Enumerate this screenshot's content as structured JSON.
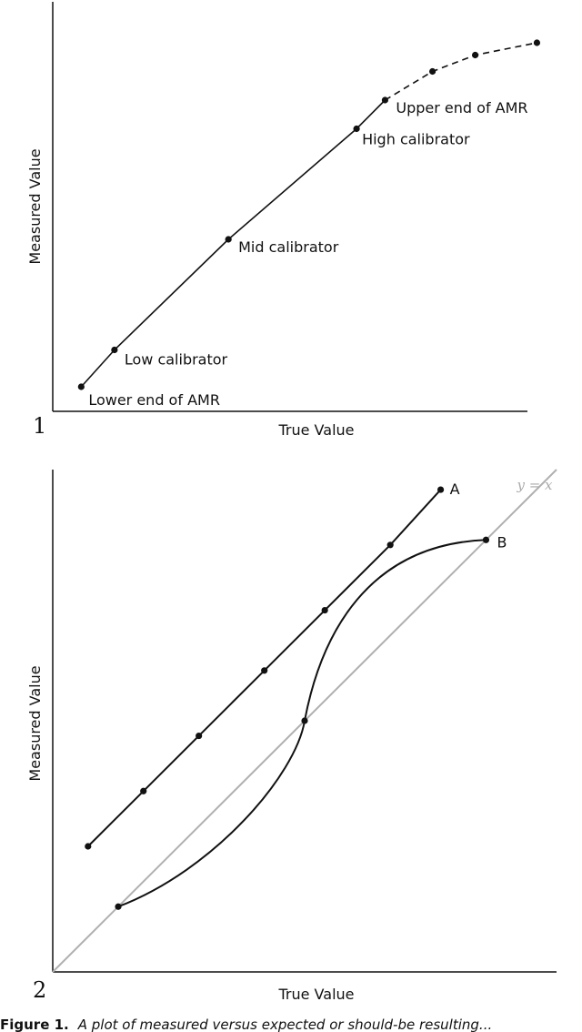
{
  "caption": {
    "label": "Figure 1.",
    "text": "A plot of measured versus expected or should-be resulting..."
  },
  "chart_data": [
    {
      "type": "line",
      "panel_number": "1",
      "xlabel": "True Value",
      "ylabel": "Measured Value",
      "xlim": [
        0,
        10
      ],
      "ylim": [
        0,
        10
      ],
      "grid": false,
      "series": [
        {
          "style": "solid",
          "x": [
            0.6,
            1.3,
            3.7,
            6.4,
            7.0
          ],
          "y": [
            0.6,
            1.5,
            4.2,
            6.9,
            7.6
          ]
        },
        {
          "style": "dashed",
          "x": [
            7.0,
            8.0,
            8.9,
            10.2
          ],
          "y": [
            7.6,
            8.3,
            8.7,
            9.0
          ]
        }
      ],
      "annotations": [
        {
          "text": "Lower end of AMR",
          "x": 0.6,
          "y": 0.6
        },
        {
          "text": "Low calibrator",
          "x": 1.3,
          "y": 1.5
        },
        {
          "text": "Mid calibrator",
          "x": 3.7,
          "y": 4.2
        },
        {
          "text": "High calibrator",
          "x": 6.4,
          "y": 6.9
        },
        {
          "text": "Upper end of AMR",
          "x": 7.0,
          "y": 7.6
        }
      ]
    },
    {
      "type": "line",
      "panel_number": "2",
      "xlabel": "True Value",
      "ylabel": "Measured Value",
      "xlim": [
        0,
        10
      ],
      "ylim": [
        0,
        10
      ],
      "grid": false,
      "reference_line": {
        "label": "y = x",
        "color": "#b0b0b0"
      },
      "series": [
        {
          "name": "A",
          "style": "solid",
          "x": [
            0.7,
            1.8,
            2.9,
            4.2,
            5.4,
            6.7,
            7.7
          ],
          "y": [
            2.5,
            3.6,
            4.7,
            6.0,
            7.2,
            8.5,
            9.6
          ]
        },
        {
          "name": "B",
          "style": "curve",
          "x": [
            1.3,
            5.0,
            8.6
          ],
          "y": [
            1.3,
            5.0,
            8.6
          ]
        }
      ]
    }
  ]
}
